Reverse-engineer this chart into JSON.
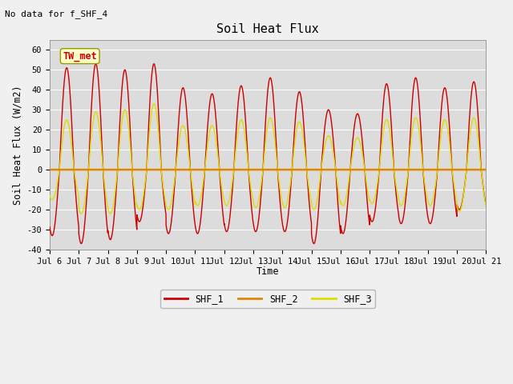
{
  "title": "Soil Heat Flux",
  "subtitle": "No data for f_SHF_4",
  "ylabel": "Soil Heat Flux (W/m2)",
  "xlabel": "Time",
  "annotation": "TW_met",
  "outer_bg": "#f0f0f0",
  "plot_bg": "#dcdcdc",
  "ylim": [
    -40,
    65
  ],
  "yticks": [
    -40,
    -30,
    -20,
    -10,
    0,
    10,
    20,
    30,
    40,
    50,
    60
  ],
  "xtick_labels": [
    "Jul 6",
    "Jul 7",
    "Jul 8",
    "Jul 9",
    "Jul 10",
    "Jul 11",
    "Jul 12",
    "Jul 13",
    "Jul 14",
    "Jul 15",
    "Jul 16",
    "Jul 17",
    "Jul 18",
    "Jul 19",
    "Jul 20",
    "Jul 21"
  ],
  "line_colors": {
    "SHF_1": "#cc0000",
    "SHF_2": "#dd8800",
    "SHF_3": "#dddd00"
  },
  "n_days": 15
}
